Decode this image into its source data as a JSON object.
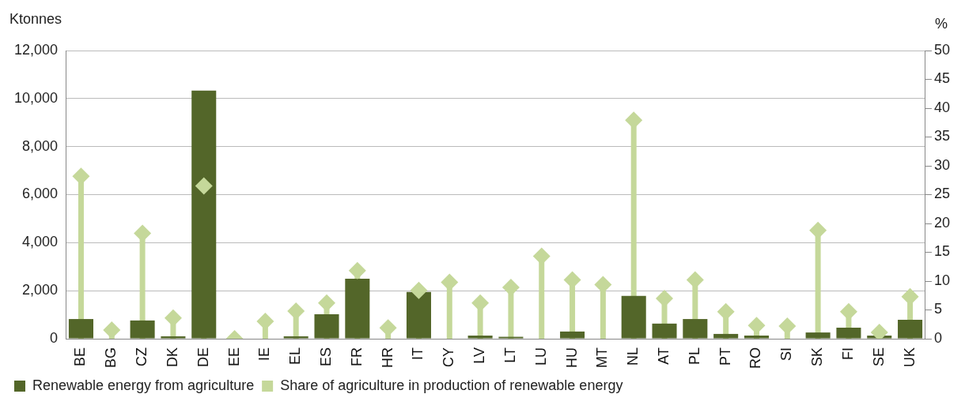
{
  "chart_data": {
    "type": "bar",
    "ylabel": "Ktonnes",
    "y2label": "%",
    "categories": [
      "BE",
      "BG",
      "CZ",
      "DK",
      "DE",
      "EE",
      "IE",
      "EL",
      "ES",
      "FR",
      "HR",
      "IT",
      "CY",
      "LV",
      "LT",
      "LU",
      "HU",
      "MT",
      "NL",
      "AT",
      "PL",
      "PT",
      "RO",
      "SI",
      "SK",
      "FI",
      "SE",
      "UK"
    ],
    "series": [
      {
        "name": "Renewable energy from agriculture",
        "color": "#536629",
        "values": [
          820,
          0,
          760,
          100,
          10330,
          0,
          0,
          100,
          1020,
          2500,
          0,
          1950,
          0,
          130,
          80,
          0,
          300,
          0,
          1780,
          630,
          820,
          200,
          130,
          0,
          260,
          460,
          130,
          790
        ]
      },
      {
        "name": "Share of agriculture in production of renewable energy",
        "type": "lollipop",
        "axis": "y2",
        "marker": "diamond",
        "color": "#c5d89a",
        "values": [
          28.2,
          1.5,
          18.3,
          3.6,
          26.5,
          0,
          3.0,
          4.8,
          6.2,
          11.8,
          1.9,
          8.4,
          9.8,
          6.2,
          8.9,
          14.3,
          10.2,
          9.4,
          37.9,
          7.0,
          10.2,
          4.7,
          2.3,
          2.2,
          18.8,
          4.7,
          1.1,
          7.3
        ]
      }
    ],
    "ylim": [
      0,
      12000
    ],
    "yticks": [
      0,
      {
        "value": 2000,
        "label": "2,000"
      },
      {
        "value": 4000,
        "label": "4,000"
      },
      {
        "value": 6000,
        "label": "6,000"
      },
      {
        "value": 8000,
        "label": "8,000"
      },
      {
        "value": 10000,
        "label": "10,000"
      },
      {
        "value": 12000,
        "label": "12,000"
      }
    ],
    "y2lim": [
      0,
      50
    ],
    "y2ticks": [
      0,
      5,
      10,
      15,
      20,
      25,
      30,
      35,
      40,
      45,
      50
    ],
    "grid": "y",
    "legend": "bottom"
  }
}
